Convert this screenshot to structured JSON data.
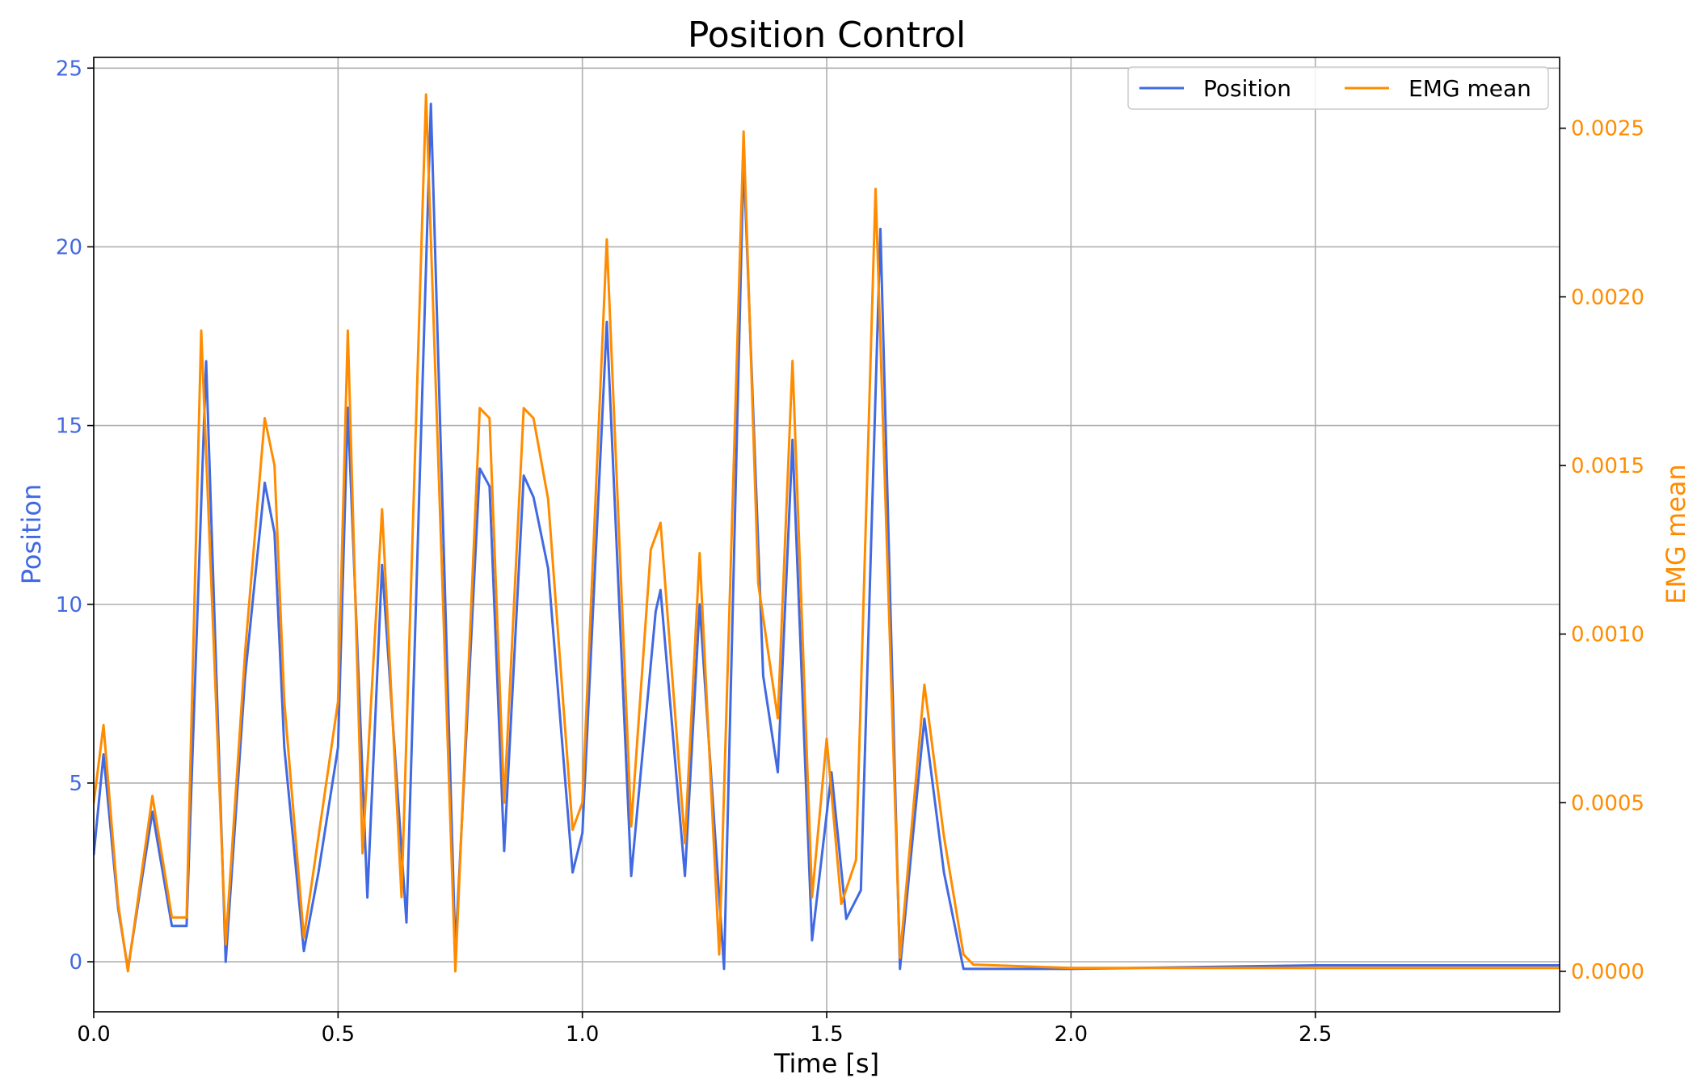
{
  "chart_data": {
    "type": "line",
    "title": "Position Control",
    "xlabel": "Time [s]",
    "ylabel_left": "Position",
    "ylabel_right": "EMG mean",
    "xlim": [
      0,
      3.0
    ],
    "ylim_left": [
      -1.4,
      25.3
    ],
    "ylim_right": [
      -0.00012,
      0.00271
    ],
    "x_ticks": [
      0.0,
      0.5,
      1.0,
      1.5,
      2.0,
      2.5
    ],
    "x_tick_labels": [
      "0.0",
      "0.5",
      "1.0",
      "1.5",
      "2.0",
      "2.5"
    ],
    "y_ticks_left": [
      0,
      5,
      10,
      15,
      20,
      25
    ],
    "y_tick_labels_left": [
      "0",
      "5",
      "10",
      "15",
      "20",
      "25"
    ],
    "y_ticks_right": [
      0.0,
      0.0005,
      0.001,
      0.0015,
      0.002,
      0.0025
    ],
    "y_tick_labels_right": [
      "0.0000",
      "0.0005",
      "0.0010",
      "0.0015",
      "0.0020",
      "0.0025"
    ],
    "grid": true,
    "legend_position": "top-right",
    "colors": {
      "position": "#4169e1",
      "emg": "#ff8c00"
    },
    "series": [
      {
        "name": "Position",
        "axis": "left",
        "x": [
          0.0,
          0.02,
          0.05,
          0.07,
          0.12,
          0.16,
          0.19,
          0.23,
          0.27,
          0.31,
          0.35,
          0.37,
          0.39,
          0.43,
          0.46,
          0.5,
          0.52,
          0.56,
          0.59,
          0.64,
          0.69,
          0.74,
          0.79,
          0.81,
          0.84,
          0.88,
          0.9,
          0.93,
          0.98,
          1.0,
          1.05,
          1.1,
          1.15,
          1.16,
          1.21,
          1.24,
          1.29,
          1.33,
          1.37,
          1.4,
          1.43,
          1.47,
          1.51,
          1.54,
          1.57,
          1.61,
          1.65,
          1.7,
          1.74,
          1.78,
          1.8,
          2.0,
          2.5,
          3.0
        ],
        "values": [
          3.0,
          5.8,
          1.5,
          -0.2,
          4.2,
          1.0,
          1.0,
          16.8,
          0.0,
          8.0,
          13.4,
          12.0,
          6.0,
          0.3,
          2.5,
          6.0,
          15.5,
          1.8,
          11.1,
          1.1,
          24.0,
          0.3,
          13.8,
          13.3,
          3.1,
          13.6,
          13.0,
          11.0,
          2.5,
          3.6,
          17.9,
          2.4,
          9.8,
          10.4,
          2.4,
          10.0,
          -0.2,
          22.5,
          8.0,
          5.3,
          14.6,
          0.6,
          5.3,
          1.2,
          2.0,
          20.5,
          -0.2,
          6.8,
          2.5,
          -0.2,
          -0.2,
          -0.2,
          -0.1,
          -0.1
        ]
      },
      {
        "name": "EMG mean",
        "axis": "right",
        "x": [
          0.0,
          0.02,
          0.05,
          0.07,
          0.12,
          0.16,
          0.19,
          0.22,
          0.27,
          0.31,
          0.35,
          0.37,
          0.39,
          0.43,
          0.47,
          0.5,
          0.52,
          0.55,
          0.59,
          0.63,
          0.68,
          0.74,
          0.79,
          0.81,
          0.84,
          0.88,
          0.9,
          0.93,
          0.98,
          1.0,
          1.05,
          1.1,
          1.14,
          1.16,
          1.21,
          1.24,
          1.28,
          1.33,
          1.36,
          1.4,
          1.43,
          1.47,
          1.5,
          1.53,
          1.56,
          1.6,
          1.65,
          1.7,
          1.74,
          1.78,
          1.8,
          2.0,
          2.5,
          3.0
        ],
        "values": [
          0.0005,
          0.00073,
          0.0002,
          0.0,
          0.00052,
          0.00016,
          0.00016,
          0.0019,
          8e-05,
          0.00095,
          0.00164,
          0.0015,
          0.0008,
          0.0001,
          0.0005,
          0.0008,
          0.0019,
          0.00035,
          0.00137,
          0.00022,
          0.0026,
          0.0,
          0.00167,
          0.00164,
          0.0005,
          0.00167,
          0.00164,
          0.0014,
          0.00042,
          0.0005,
          0.00217,
          0.00043,
          0.00125,
          0.00133,
          0.00038,
          0.00124,
          5e-05,
          0.00249,
          0.00115,
          0.00075,
          0.00181,
          0.00022,
          0.00069,
          0.0002,
          0.00033,
          0.00232,
          4e-05,
          0.00085,
          0.0004,
          5e-05,
          2e-05,
          1e-05,
          1e-05,
          1e-05
        ]
      }
    ]
  }
}
